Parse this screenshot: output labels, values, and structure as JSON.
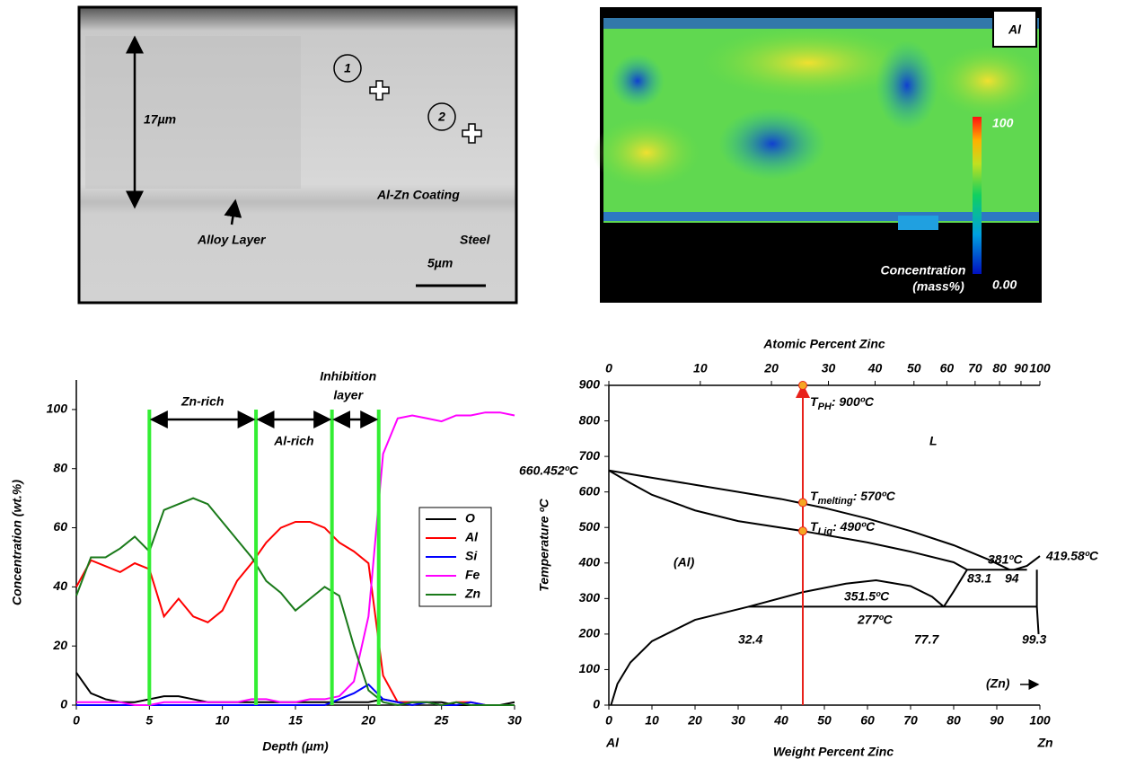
{
  "sem_image": {
    "thickness": "17µm",
    "point_1": "1",
    "point_2": "2",
    "coating": "Al-Zn Coating",
    "alloy_layer": "Alloy Layer",
    "substrate": "Steel",
    "scale_bar": "5µm"
  },
  "eds_map": {
    "element": "Al",
    "colorbar_max": "100",
    "colorbar_min": "0.00",
    "colorbar_title": [
      "Concentration",
      "(mass%)"
    ]
  },
  "chart_data": [
    {
      "type": "line",
      "x_label": "Depth (µm)",
      "y_label": "Concentration (wt.%)",
      "xlim": [
        0,
        30
      ],
      "ylim": [
        0,
        110
      ],
      "xticks": [
        0,
        5,
        10,
        15,
        20,
        25,
        30
      ],
      "yticks": [
        0,
        20,
        40,
        60,
        80,
        100
      ],
      "x": [
        0,
        1,
        2,
        3,
        4,
        5,
        6,
        7,
        8,
        9,
        10,
        11,
        12,
        13,
        14,
        15,
        16,
        17,
        18,
        19,
        20,
        21,
        22,
        23,
        24,
        25,
        26,
        27,
        28,
        29,
        30
      ],
      "series": [
        {
          "name": "O",
          "color": "#000000",
          "values": [
            11,
            4,
            2,
            1,
            1,
            2,
            3,
            3,
            2,
            1,
            1,
            1,
            1,
            1,
            1,
            1,
            1,
            1,
            1,
            1,
            1,
            2,
            1,
            1,
            1,
            1,
            0,
            0,
            0,
            0,
            1
          ]
        },
        {
          "name": "Al",
          "color": "#ff0000",
          "values": [
            40,
            49,
            47,
            45,
            48,
            46,
            30,
            36,
            30,
            28,
            32,
            42,
            48,
            55,
            60,
            62,
            62,
            60,
            55,
            52,
            48,
            10,
            1,
            1,
            1,
            0,
            1,
            1,
            0,
            0,
            0
          ]
        },
        {
          "name": "Si",
          "color": "#0000ff",
          "values": [
            0,
            0,
            0,
            0,
            0,
            0,
            0,
            0,
            0,
            0,
            0,
            0,
            0,
            0,
            0,
            0,
            0,
            0,
            2,
            4,
            7,
            2,
            1,
            0,
            1,
            0,
            0,
            1,
            0,
            0,
            0
          ]
        },
        {
          "name": "Fe",
          "color": "#ff00ff",
          "values": [
            1,
            1,
            1,
            1,
            0,
            0,
            1,
            1,
            1,
            1,
            1,
            1,
            2,
            2,
            1,
            1,
            2,
            2,
            3,
            8,
            30,
            85,
            97,
            98,
            97,
            96,
            98,
            98,
            99,
            99,
            98
          ]
        },
        {
          "name": "Zn",
          "color": "#1a7a1a",
          "values": [
            37,
            50,
            50,
            53,
            57,
            52,
            66,
            68,
            70,
            68,
            62,
            56,
            50,
            42,
            38,
            32,
            36,
            40,
            37,
            20,
            5,
            1,
            0,
            1,
            1,
            0,
            1,
            0,
            0,
            0,
            0
          ]
        }
      ],
      "boundaries": [
        5,
        12.3,
        17.5,
        20.7
      ],
      "regions": [
        {
          "label_lines": [
            "Zn-rich"
          ]
        },
        {
          "label_lines": [
            "Al-rich"
          ]
        },
        {
          "label_lines": [
            "Inhibition",
            "layer"
          ]
        }
      ]
    },
    {
      "type": "phase",
      "x_label": "Weight Percent Zinc",
      "x2_label": "Atomic Percent Zinc",
      "y_label": "Temperature ºC",
      "x_end_labels": [
        "Al",
        "Zn"
      ],
      "xlim": [
        0,
        100
      ],
      "ylim": [
        0,
        900
      ],
      "xticks": [
        0,
        10,
        20,
        30,
        40,
        50,
        60,
        70,
        80,
        90,
        100
      ],
      "yticks": [
        0,
        100,
        200,
        300,
        400,
        500,
        600,
        700,
        800,
        900
      ],
      "x2ticks": [
        0,
        10,
        20,
        30,
        40,
        50,
        60,
        70,
        80,
        90,
        100
      ],
      "series": [
        {
          "color": "#000000",
          "x": [
            0,
            10,
            20,
            30,
            40,
            50,
            60,
            70,
            80,
            88,
            93
          ],
          "values": [
            660.452,
            640,
            620,
            600,
            580,
            555,
            525,
            490,
            450,
            410,
            381
          ]
        },
        {
          "color": "#000000",
          "x": [
            0,
            5,
            10,
            20,
            30,
            45,
            60,
            70,
            80,
            83.1
          ],
          "values": [
            660.452,
            625,
            592,
            548,
            518,
            490,
            458,
            432,
            402,
            381
          ]
        },
        {
          "color": "#000000",
          "x": [
            83.1,
            97
          ],
          "values": [
            381,
            381
          ]
        },
        {
          "color": "#000000",
          "x": [
            94,
            97,
            100
          ],
          "values": [
            381,
            392,
            419.58
          ]
        },
        {
          "color": "#000000",
          "x": [
            0.5,
            2,
            5,
            10,
            20,
            32.4,
            45,
            55,
            62,
            70,
            75,
            77.7
          ],
          "values": [
            0,
            60,
            120,
            180,
            240,
            277,
            318,
            342,
            351.5,
            335,
            305,
            277
          ]
        },
        {
          "color": "#000000",
          "x": [
            77.7,
            80,
            83.1
          ],
          "values": [
            277,
            320,
            381
          ]
        },
        {
          "color": "#000000",
          "x": [
            32.4,
            99.3
          ],
          "values": [
            277,
            277
          ]
        },
        {
          "color": "#000000",
          "x": [
            99.3,
            99.3,
            99.7
          ],
          "values": [
            381,
            277,
            200
          ]
        },
        {
          "color": "#e8221b",
          "x": [
            45,
            45
          ],
          "values": [
            0,
            900
          ]
        }
      ],
      "markers": {
        "color": "#f5a623",
        "x": [
          45,
          45,
          45
        ],
        "values": [
          900,
          570,
          490
        ]
      },
      "temperature_labels": [
        {
          "main": "T",
          "sub": "PH",
          "rest": ": 900ºC"
        },
        {
          "main": "T",
          "sub": "melting",
          "rest": ": 570ºC"
        },
        {
          "main": "T",
          "sub": "Liq",
          "rest": ": 490ºC"
        }
      ],
      "annotations": [
        "660.452ºC",
        "419.58ºC",
        "381ºC",
        "351.5ºC",
        "277ºC",
        "32.4",
        "77.7",
        "99.3",
        "83.1",
        "94",
        "L",
        "(Al)",
        "(Zn)"
      ]
    }
  ]
}
